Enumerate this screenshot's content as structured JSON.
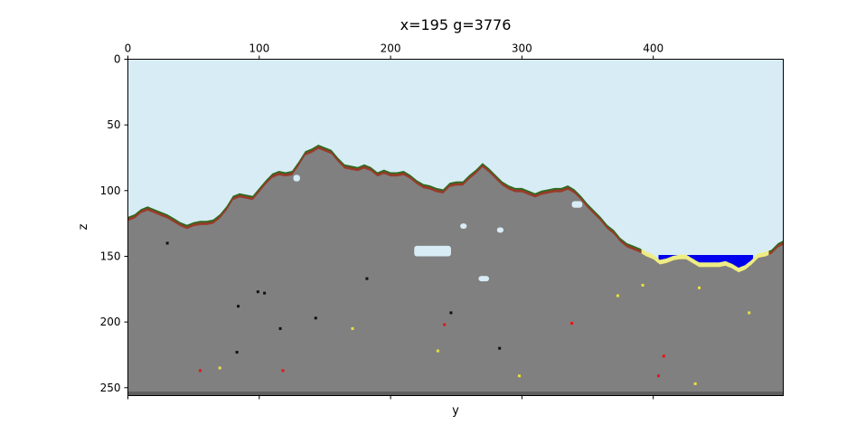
{
  "chart_data": {
    "type": "heatmap",
    "title": "x=195 g=3776",
    "xlabel": "y",
    "ylabel": "z",
    "xlim": [
      0,
      499
    ],
    "ylim": [
      256,
      0
    ],
    "x_ticks": [
      0,
      100,
      200,
      300,
      400
    ],
    "y_ticks": [
      0,
      50,
      100,
      150,
      200,
      250
    ],
    "x_axis_position": "top",
    "grid": false,
    "colors": {
      "air": "#d8ecf5",
      "stone": "#808080",
      "dirt": "#993a2a",
      "grass": "#2d6b1f",
      "sand": "#eded85",
      "water": "#0000ee",
      "cave": "#d8ecf5",
      "coal": "#111111",
      "redstone": "#ee1111",
      "gold": "#e8e040",
      "bedrock": "#555555"
    },
    "surface_profile": [
      {
        "y": 0,
        "z": 120
      },
      {
        "y": 5,
        "z": 118
      },
      {
        "y": 10,
        "z": 114
      },
      {
        "y": 15,
        "z": 112
      },
      {
        "y": 20,
        "z": 114
      },
      {
        "y": 25,
        "z": 116
      },
      {
        "y": 30,
        "z": 118
      },
      {
        "y": 35,
        "z": 121
      },
      {
        "y": 40,
        "z": 124
      },
      {
        "y": 45,
        "z": 126
      },
      {
        "y": 50,
        "z": 124
      },
      {
        "y": 55,
        "z": 123
      },
      {
        "y": 60,
        "z": 123
      },
      {
        "y": 65,
        "z": 122
      },
      {
        "y": 70,
        "z": 118
      },
      {
        "y": 75,
        "z": 112
      },
      {
        "y": 80,
        "z": 104
      },
      {
        "y": 85,
        "z": 102
      },
      {
        "y": 90,
        "z": 103
      },
      {
        "y": 95,
        "z": 104
      },
      {
        "y": 100,
        "z": 98
      },
      {
        "y": 105,
        "z": 92
      },
      {
        "y": 110,
        "z": 87
      },
      {
        "y": 115,
        "z": 85
      },
      {
        "y": 120,
        "z": 86
      },
      {
        "y": 125,
        "z": 85
      },
      {
        "y": 130,
        "z": 78
      },
      {
        "y": 135,
        "z": 70
      },
      {
        "y": 140,
        "z": 68
      },
      {
        "y": 145,
        "z": 65
      },
      {
        "y": 150,
        "z": 67
      },
      {
        "y": 155,
        "z": 69
      },
      {
        "y": 160,
        "z": 75
      },
      {
        "y": 165,
        "z": 80
      },
      {
        "y": 170,
        "z": 81
      },
      {
        "y": 175,
        "z": 82
      },
      {
        "y": 180,
        "z": 80
      },
      {
        "y": 185,
        "z": 82
      },
      {
        "y": 190,
        "z": 86
      },
      {
        "y": 195,
        "z": 84
      },
      {
        "y": 200,
        "z": 86
      },
      {
        "y": 205,
        "z": 86
      },
      {
        "y": 210,
        "z": 85
      },
      {
        "y": 215,
        "z": 88
      },
      {
        "y": 220,
        "z": 92
      },
      {
        "y": 225,
        "z": 95
      },
      {
        "y": 230,
        "z": 96
      },
      {
        "y": 235,
        "z": 98
      },
      {
        "y": 240,
        "z": 99
      },
      {
        "y": 245,
        "z": 94
      },
      {
        "y": 250,
        "z": 93
      },
      {
        "y": 255,
        "z": 93
      },
      {
        "y": 260,
        "z": 88
      },
      {
        "y": 265,
        "z": 84
      },
      {
        "y": 270,
        "z": 79
      },
      {
        "y": 275,
        "z": 83
      },
      {
        "y": 280,
        "z": 88
      },
      {
        "y": 285,
        "z": 93
      },
      {
        "y": 290,
        "z": 96
      },
      {
        "y": 295,
        "z": 98
      },
      {
        "y": 300,
        "z": 98
      },
      {
        "y": 305,
        "z": 100
      },
      {
        "y": 310,
        "z": 102
      },
      {
        "y": 315,
        "z": 100
      },
      {
        "y": 320,
        "z": 99
      },
      {
        "y": 325,
        "z": 98
      },
      {
        "y": 330,
        "z": 98
      },
      {
        "y": 335,
        "z": 96
      },
      {
        "y": 340,
        "z": 99
      },
      {
        "y": 345,
        "z": 104
      },
      {
        "y": 350,
        "z": 110
      },
      {
        "y": 355,
        "z": 115
      },
      {
        "y": 360,
        "z": 120
      },
      {
        "y": 365,
        "z": 126
      },
      {
        "y": 370,
        "z": 130
      },
      {
        "y": 375,
        "z": 136
      },
      {
        "y": 380,
        "z": 140
      },
      {
        "y": 385,
        "z": 142
      },
      {
        "y": 390,
        "z": 144
      },
      {
        "y": 395,
        "z": 147
      },
      {
        "y": 400,
        "z": 149
      },
      {
        "y": 405,
        "z": 153
      },
      {
        "y": 410,
        "z": 152
      },
      {
        "y": 415,
        "z": 150
      },
      {
        "y": 420,
        "z": 149
      },
      {
        "y": 425,
        "z": 149
      },
      {
        "y": 430,
        "z": 152
      },
      {
        "y": 435,
        "z": 155
      },
      {
        "y": 440,
        "z": 155
      },
      {
        "y": 445,
        "z": 155
      },
      {
        "y": 450,
        "z": 155
      },
      {
        "y": 455,
        "z": 154
      },
      {
        "y": 460,
        "z": 156
      },
      {
        "y": 465,
        "z": 159
      },
      {
        "y": 470,
        "z": 157
      },
      {
        "y": 475,
        "z": 153
      },
      {
        "y": 480,
        "z": 148
      },
      {
        "y": 485,
        "z": 147
      },
      {
        "y": 490,
        "z": 145
      },
      {
        "y": 495,
        "z": 140
      },
      {
        "y": 499,
        "z": 138
      }
    ],
    "water_level": 149,
    "water_range_y": [
      404,
      476
    ],
    "sand_range_y": [
      391,
      488
    ],
    "caves": [
      {
        "y1": 218,
        "y2": 246,
        "z1": 142,
        "z2": 150
      },
      {
        "y1": 126,
        "y2": 131,
        "z1": 88,
        "z2": 93
      },
      {
        "y1": 253,
        "y2": 258,
        "z1": 125,
        "z2": 129
      },
      {
        "y1": 281,
        "y2": 286,
        "z1": 128,
        "z2": 132
      },
      {
        "y1": 267,
        "y2": 275,
        "z1": 165,
        "z2": 169
      },
      {
        "y1": 338,
        "y2": 346,
        "z1": 108,
        "z2": 113
      }
    ],
    "ores": [
      {
        "kind": "coal",
        "y": 30,
        "z": 140
      },
      {
        "kind": "coal",
        "y": 99,
        "z": 177
      },
      {
        "kind": "coal",
        "y": 104,
        "z": 178
      },
      {
        "kind": "coal",
        "y": 84,
        "z": 188
      },
      {
        "kind": "coal",
        "y": 116,
        "z": 205
      },
      {
        "kind": "coal",
        "y": 143,
        "z": 197
      },
      {
        "kind": "coal",
        "y": 182,
        "z": 167
      },
      {
        "kind": "coal",
        "y": 246,
        "z": 193
      },
      {
        "kind": "coal",
        "y": 83,
        "z": 223
      },
      {
        "kind": "coal",
        "y": 283,
        "z": 220
      },
      {
        "kind": "redstone",
        "y": 55,
        "z": 237
      },
      {
        "kind": "redstone",
        "y": 118,
        "z": 237
      },
      {
        "kind": "redstone",
        "y": 241,
        "z": 202
      },
      {
        "kind": "redstone",
        "y": 338,
        "z": 201
      },
      {
        "kind": "redstone",
        "y": 408,
        "z": 226
      },
      {
        "kind": "redstone",
        "y": 404,
        "z": 241
      },
      {
        "kind": "gold",
        "y": 70,
        "z": 235
      },
      {
        "kind": "gold",
        "y": 171,
        "z": 205
      },
      {
        "kind": "gold",
        "y": 236,
        "z": 222
      },
      {
        "kind": "gold",
        "y": 298,
        "z": 241
      },
      {
        "kind": "gold",
        "y": 373,
        "z": 180
      },
      {
        "kind": "gold",
        "y": 392,
        "z": 172
      },
      {
        "kind": "gold",
        "y": 435,
        "z": 174
      },
      {
        "kind": "gold",
        "y": 473,
        "z": 193
      },
      {
        "kind": "gold",
        "y": 432,
        "z": 247
      }
    ],
    "bedrock_from_z": 253
  }
}
